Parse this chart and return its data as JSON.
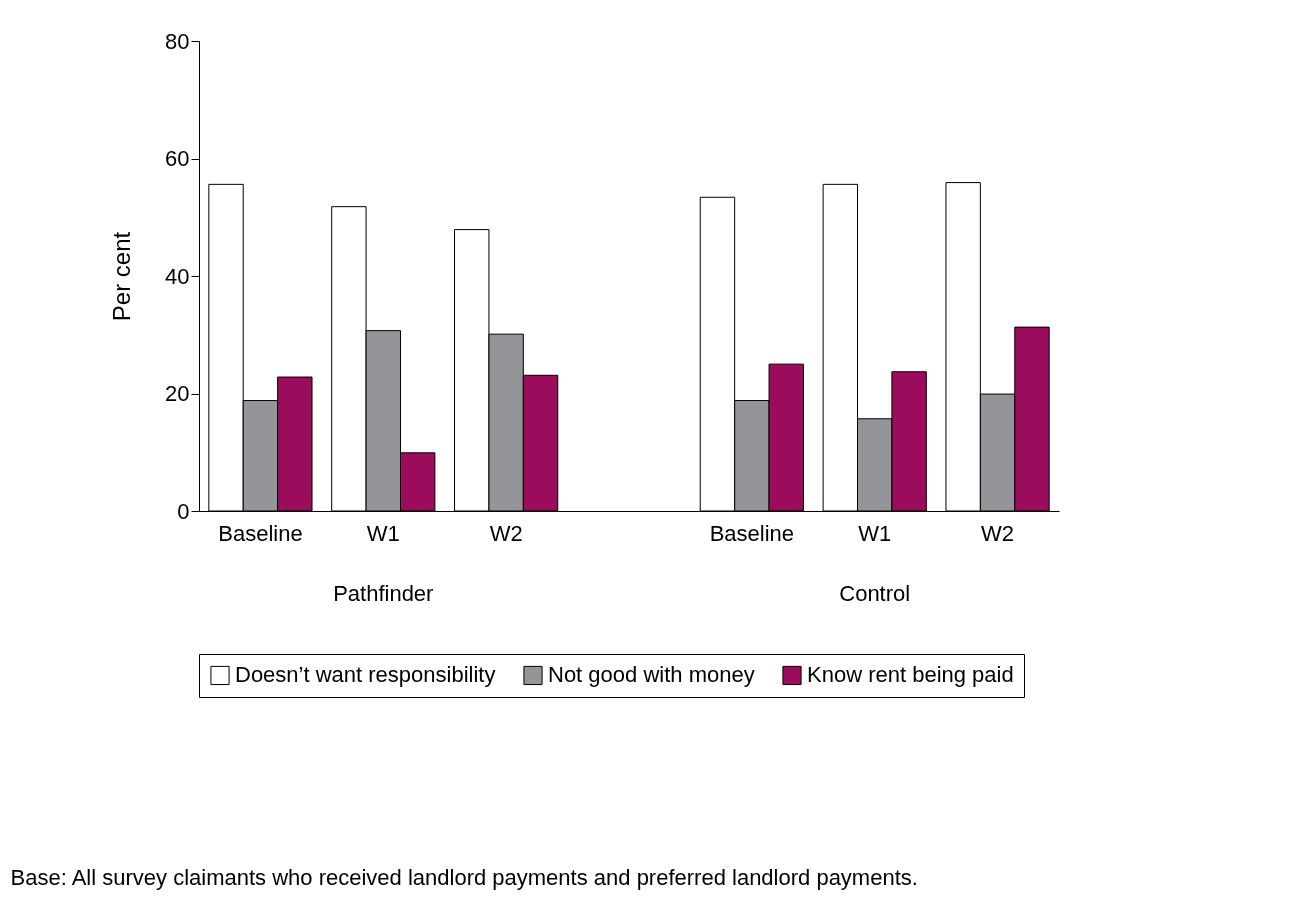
{
  "chart_data": {
    "type": "bar",
    "ylabel": "Per cent",
    "categories": [
      "Baseline",
      "W1",
      "W2",
      "Baseline",
      "W1",
      "W2"
    ],
    "series": [
      {
        "name": "Doesn’t want responsibility",
        "color": "#ffffff",
        "values": [
          55.6,
          51.8,
          47.9,
          53.4,
          55.6,
          55.9
        ]
      },
      {
        "name": "Not good with money",
        "color": "#939598",
        "values": [
          18.8,
          30.7,
          30.1,
          18.8,
          15.7,
          19.9
        ]
      },
      {
        "name": "Know rent being paid",
        "color": "#9b0d5c",
        "values": [
          22.8,
          9.9,
          23.1,
          25.0,
          23.7,
          31.3
        ]
      }
    ],
    "ylim": [
      0,
      80
    ],
    "yticks": [
      0,
      20,
      40,
      60,
      80
    ],
    "grid": false,
    "legend": "bottom",
    "annotations": [
      "Pathfinder",
      "Control",
      "Base: All survey claimants who received landlord payments and preferred landlord payments."
    ]
  }
}
